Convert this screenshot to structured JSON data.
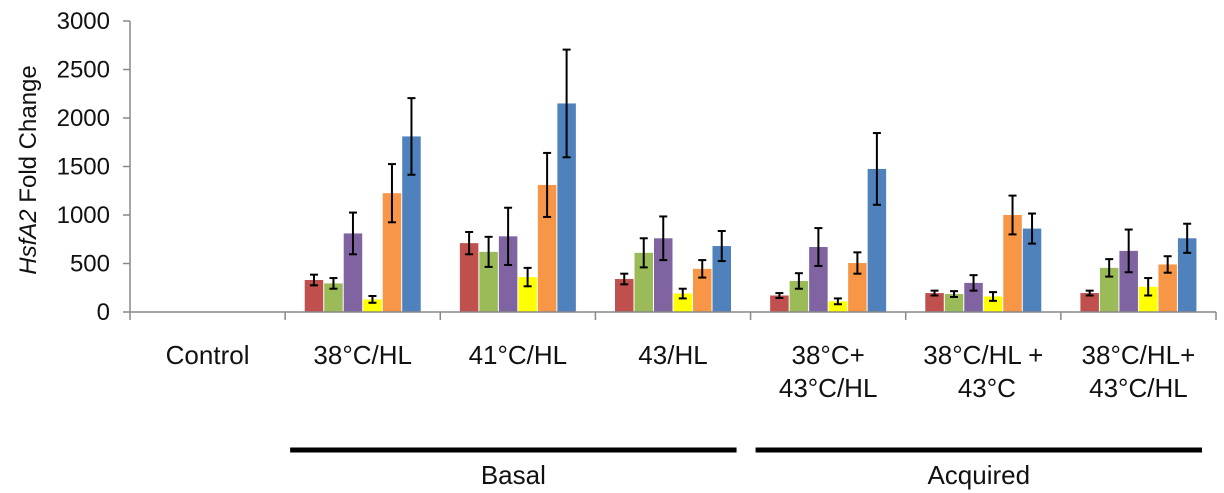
{
  "chart_data": {
    "type": "bar",
    "ylabel_italic": "HsfA2",
    "ylabel_rest": " Fold Change",
    "ylim": [
      0,
      3000
    ],
    "yticks": [
      0,
      500,
      1000,
      1500,
      2000,
      2500,
      3000
    ],
    "categories": [
      [
        "Control"
      ],
      [
        "38°C/HL"
      ],
      [
        "41°C/HL"
      ],
      [
        "43/HL"
      ],
      [
        "38°C+",
        "43°C/HL"
      ],
      [
        "38°C/HL +",
        " 43°C"
      ],
      [
        "38°C/HL+",
        "43°C/HL"
      ]
    ],
    "groups": [
      {
        "label": "Basal",
        "first": 1,
        "last": 3
      },
      {
        "label": "Acquired",
        "first": 4,
        "last": 6
      }
    ],
    "series": [
      {
        "color": "#c0504d",
        "values": [
          1,
          330,
          710,
          340,
          170,
          195,
          195
        ],
        "errors": [
          0,
          55,
          115,
          55,
          25,
          25,
          25
        ]
      },
      {
        "color": "#9bbb59",
        "values": [
          1,
          295,
          620,
          610,
          320,
          185,
          455
        ],
        "errors": [
          0,
          55,
          155,
          150,
          80,
          30,
          90
        ]
      },
      {
        "color": "#8064a2",
        "values": [
          1,
          810,
          780,
          760,
          670,
          300,
          630
        ],
        "errors": [
          0,
          215,
          295,
          225,
          195,
          80,
          220
        ]
      },
      {
        "color": "#ffff00",
        "values": [
          1,
          130,
          360,
          190,
          110,
          160,
          260
        ],
        "errors": [
          0,
          35,
          95,
          50,
          30,
          45,
          90
        ]
      },
      {
        "color": "#f79646",
        "values": [
          1,
          1225,
          1310,
          445,
          505,
          1000,
          490
        ],
        "errors": [
          0,
          300,
          330,
          90,
          110,
          200,
          85
        ]
      },
      {
        "color": "#4f81bd",
        "values": [
          1,
          1810,
          2150,
          680,
          1475,
          860,
          760
        ],
        "errors": [
          0,
          395,
          555,
          155,
          370,
          155,
          150
        ]
      }
    ]
  }
}
